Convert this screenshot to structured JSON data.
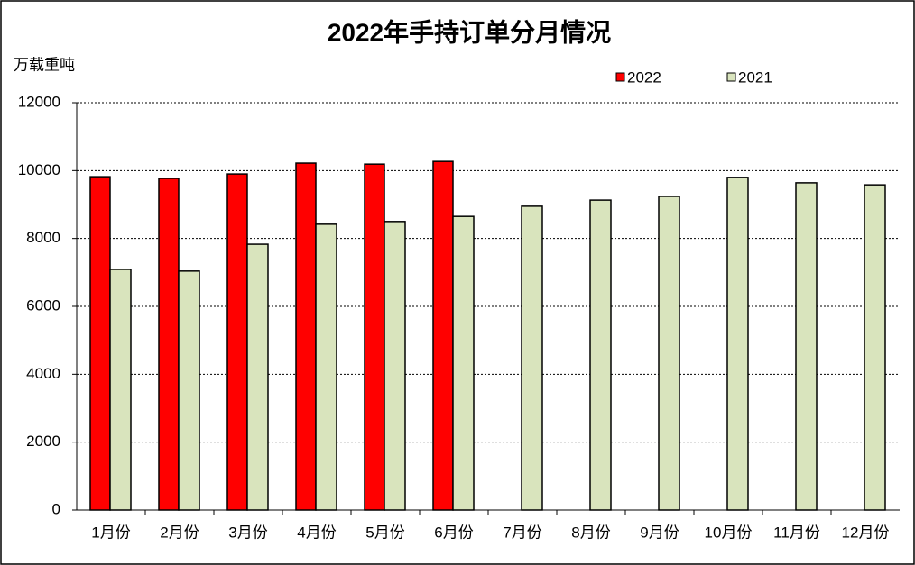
{
  "chart_data": {
    "type": "bar",
    "title": "2022年手持订单分月情况",
    "y_label": "万载重吨",
    "categories": [
      "1月份",
      "2月份",
      "3月份",
      "4月份",
      "5月份",
      "6月份",
      "7月份",
      "8月份",
      "9月份",
      "10月份",
      "11月份",
      "12月份"
    ],
    "series": [
      {
        "name": "2022",
        "color": "#ff0000",
        "values": [
          9820,
          9770,
          9900,
          10220,
          10190,
          10270,
          null,
          null,
          null,
          null,
          null,
          null
        ]
      },
      {
        "name": "2021",
        "color": "#d9e4bd",
        "values": [
          7090,
          7040,
          7830,
          8420,
          8500,
          8650,
          8950,
          9130,
          9240,
          9800,
          9640,
          9580
        ]
      }
    ],
    "ylim": [
      0,
      12000
    ],
    "yticks": [
      0,
      2000,
      4000,
      6000,
      8000,
      10000,
      12000
    ],
    "grid": true
  }
}
